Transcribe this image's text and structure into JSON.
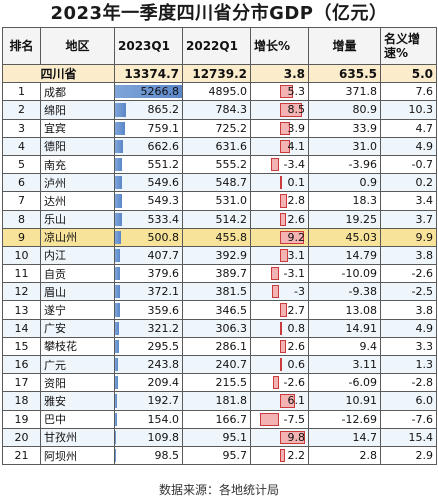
{
  "title": "2023年一季度四川省分市GDP（亿元）",
  "headers": [
    "排名",
    "地区",
    "2023Q1",
    "2022Q1",
    "增长%",
    "增量",
    "名义增速%"
  ],
  "province": {
    "name": "四川省",
    "q1_2023": "13374.7",
    "q1_2022": "12739.2",
    "growth": "3.8",
    "increment": "635.5",
    "nominal": "5.0"
  },
  "bar_max": 5266.8,
  "growth_max": 9.8,
  "rows": [
    {
      "rank": "1",
      "region": "成都",
      "q1_2023": "5266.8",
      "q1_2022": "4895.0",
      "growth": "5.3",
      "increment": "371.8",
      "nominal": "7.6"
    },
    {
      "rank": "2",
      "region": "绵阳",
      "q1_2023": "865.2",
      "q1_2022": "784.3",
      "growth": "8.5",
      "increment": "80.9",
      "nominal": "10.3"
    },
    {
      "rank": "3",
      "region": "宜宾",
      "q1_2023": "759.1",
      "q1_2022": "725.2",
      "growth": "3.9",
      "increment": "33.9",
      "nominal": "4.7"
    },
    {
      "rank": "4",
      "region": "德阳",
      "q1_2023": "662.6",
      "q1_2022": "631.6",
      "growth": "4.1",
      "increment": "31.0",
      "nominal": "4.9"
    },
    {
      "rank": "5",
      "region": "南充",
      "q1_2023": "551.2",
      "q1_2022": "555.2",
      "growth": "-3.4",
      "increment": "-3.96",
      "nominal": "-0.7"
    },
    {
      "rank": "6",
      "region": "泸州",
      "q1_2023": "549.6",
      "q1_2022": "548.7",
      "growth": "0.1",
      "increment": "0.9",
      "nominal": "0.2"
    },
    {
      "rank": "7",
      "region": "达州",
      "q1_2023": "549.3",
      "q1_2022": "531.0",
      "growth": "2.8",
      "increment": "18.3",
      "nominal": "3.4"
    },
    {
      "rank": "8",
      "region": "乐山",
      "q1_2023": "533.4",
      "q1_2022": "514.2",
      "growth": "2.6",
      "increment": "19.25",
      "nominal": "3.7"
    },
    {
      "rank": "9",
      "region": "凉山州",
      "q1_2023": "500.8",
      "q1_2022": "455.8",
      "growth": "9.2",
      "increment": "45.03",
      "nominal": "9.9"
    },
    {
      "rank": "10",
      "region": "内江",
      "q1_2023": "407.7",
      "q1_2022": "392.9",
      "growth": "3.1",
      "increment": "14.79",
      "nominal": "3.8"
    },
    {
      "rank": "11",
      "region": "自贡",
      "q1_2023": "379.6",
      "q1_2022": "389.7",
      "growth": "-3.1",
      "increment": "-10.09",
      "nominal": "-2.6"
    },
    {
      "rank": "12",
      "region": "眉山",
      "q1_2023": "372.1",
      "q1_2022": "381.5",
      "growth": "-3",
      "increment": "-9.38",
      "nominal": "-2.5"
    },
    {
      "rank": "13",
      "region": "遂宁",
      "q1_2023": "359.6",
      "q1_2022": "346.5",
      "growth": "2.7",
      "increment": "13.08",
      "nominal": "3.8"
    },
    {
      "rank": "14",
      "region": "广安",
      "q1_2023": "321.2",
      "q1_2022": "306.3",
      "growth": "0.8",
      "increment": "14.91",
      "nominal": "4.9"
    },
    {
      "rank": "15",
      "region": "攀枝花",
      "q1_2023": "295.5",
      "q1_2022": "286.1",
      "growth": "2.6",
      "increment": "9.4",
      "nominal": "3.3"
    },
    {
      "rank": "16",
      "region": "广元",
      "q1_2023": "243.8",
      "q1_2022": "240.7",
      "growth": "0.6",
      "increment": "3.11",
      "nominal": "1.3"
    },
    {
      "rank": "17",
      "region": "资阳",
      "q1_2023": "209.4",
      "q1_2022": "215.5",
      "growth": "-2.6",
      "increment": "-6.09",
      "nominal": "-2.8"
    },
    {
      "rank": "18",
      "region": "雅安",
      "q1_2023": "192.7",
      "q1_2022": "181.8",
      "growth": "6.1",
      "increment": "10.91",
      "nominal": "6.0"
    },
    {
      "rank": "19",
      "region": "巴中",
      "q1_2023": "154.0",
      "q1_2022": "166.7",
      "growth": "-7.5",
      "increment": "-12.69",
      "nominal": "-7.6"
    },
    {
      "rank": "20",
      "region": "甘孜州",
      "q1_2023": "109.8",
      "q1_2022": "95.1",
      "growth": "9.8",
      "increment": "14.7",
      "nominal": "15.4"
    },
    {
      "rank": "21",
      "region": "阿坝州",
      "q1_2023": "98.5",
      "q1_2022": "95.7",
      "growth": "2.2",
      "increment": "2.8",
      "nominal": "2.9"
    }
  ],
  "source": "数据来源：各地统计局"
}
